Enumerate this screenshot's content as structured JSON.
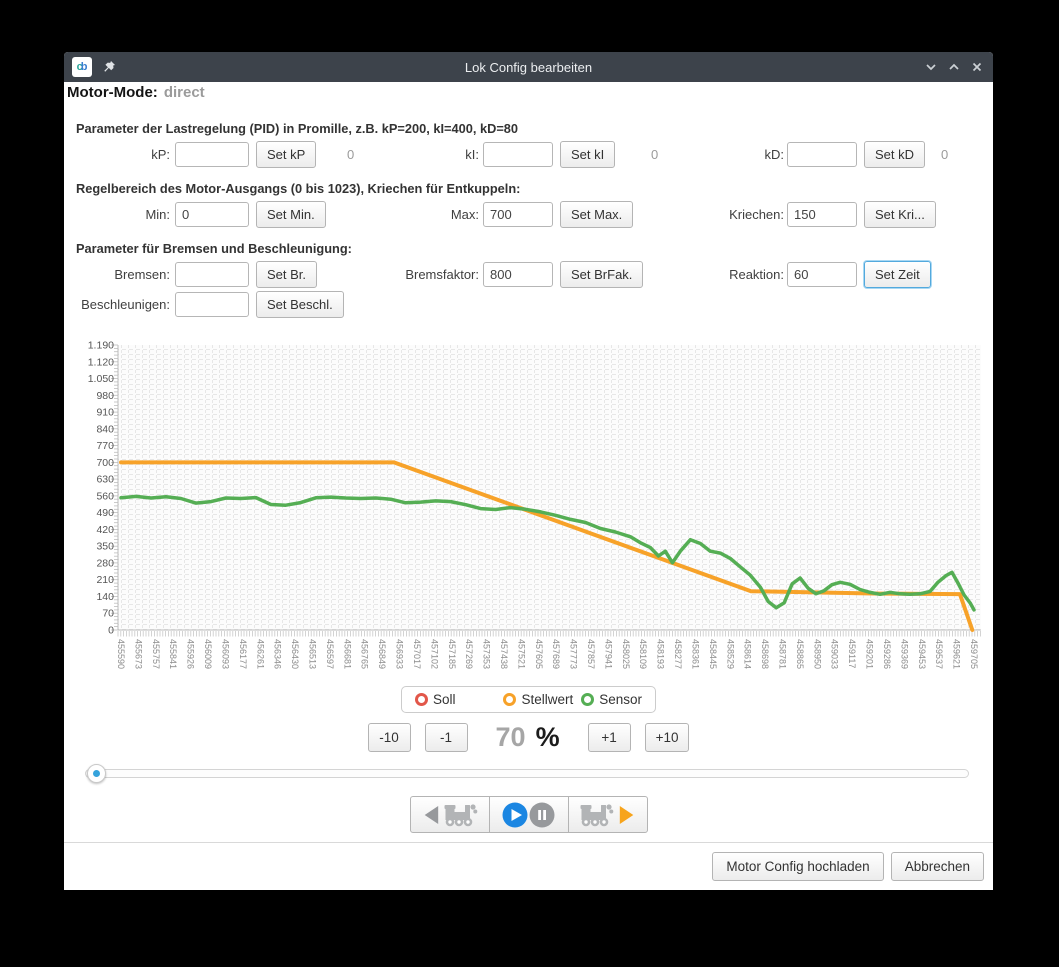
{
  "window": {
    "title": "Lok Config bearbeiten",
    "app_icon_text_1": "c",
    "app_icon_text_2": "b",
    "motor_mode_label": "Motor-Mode:",
    "motor_mode_value": "direct"
  },
  "sections": {
    "pid": {
      "heading": "Parameter der Lastregelung (PID) in Promille, z.B. kP=200, kI=400, kD=80",
      "fields": [
        {
          "label": "kP:",
          "value": "",
          "button": "Set kP",
          "readout": "0"
        },
        {
          "label": "kI:",
          "value": "",
          "button": "Set kI",
          "readout": "0"
        },
        {
          "label": "kD:",
          "value": "",
          "button": "Set kD",
          "readout": "0"
        }
      ]
    },
    "range": {
      "heading": "Regelbereich des Motor-Ausgangs (0 bis 1023), Kriechen für Entkuppeln:",
      "fields": [
        {
          "label": "Min:",
          "value": "0",
          "button": "Set Min."
        },
        {
          "label": "Max:",
          "value": "700",
          "button": "Set Max."
        },
        {
          "label": "Kriechen:",
          "value": "150",
          "button": "Set Kri..."
        }
      ]
    },
    "brake": {
      "heading": "Parameter für Bremsen und Beschleunigung:",
      "fields_row1": [
        {
          "label": "Bremsen:",
          "value": "",
          "button": "Set Br."
        },
        {
          "label": "Bremsfaktor:",
          "value": "800",
          "button": "Set BrFak."
        },
        {
          "label": "Reaktion:",
          "value": "60",
          "button": "Set Zeit",
          "focused": true
        }
      ],
      "fields_row2": [
        {
          "label": "Beschleunigen:",
          "value": "",
          "button": "Set Beschl."
        }
      ]
    }
  },
  "chart_data": {
    "type": "line",
    "title": "",
    "xlabel": "",
    "ylabel": "",
    "xlim": [
      455590,
      459705
    ],
    "ylim": [
      0,
      1190
    ],
    "grid": true,
    "legend_position": "bottom",
    "y_ticks": [
      "0",
      "70",
      "140",
      "210",
      "280",
      "350",
      "420",
      "490",
      "560",
      "630",
      "700",
      "770",
      "840",
      "910",
      "980",
      "1.050",
      "1.120",
      "1.190"
    ],
    "x_ticks": [
      "455590",
      "455673",
      "455757",
      "455841",
      "455926",
      "456009",
      "456093",
      "456177",
      "456261",
      "456346",
      "456430",
      "456513",
      "456597",
      "456681",
      "456765",
      "456849",
      "456933",
      "457017",
      "457102",
      "457185",
      "457269",
      "457353",
      "457438",
      "457521",
      "457605",
      "457689",
      "457773",
      "457857",
      "457941",
      "458025",
      "458109",
      "458193",
      "458277",
      "458361",
      "458445",
      "458529",
      "458614",
      "458698",
      "458781",
      "458865",
      "458950",
      "459033",
      "459117",
      "459201",
      "459286",
      "459369",
      "459453",
      "459537",
      "459621",
      "459705"
    ],
    "series": [
      {
        "name": "Soll",
        "color": "#e2574a",
        "values": []
      },
      {
        "name": "Stellwert",
        "color": "#f7a229",
        "values": [
          [
            455590,
            700
          ],
          [
            456907,
            700
          ],
          [
            458629,
            162
          ],
          [
            459250,
            152
          ],
          [
            459637,
            150
          ],
          [
            459697,
            0
          ]
        ]
      },
      {
        "name": "Sensor",
        "color": "#55ae54",
        "values": [
          [
            455590,
            552
          ],
          [
            455662,
            558
          ],
          [
            455735,
            551
          ],
          [
            455807,
            556
          ],
          [
            455879,
            549
          ],
          [
            455951,
            530
          ],
          [
            456024,
            536
          ],
          [
            456096,
            551
          ],
          [
            456168,
            549
          ],
          [
            456241,
            553
          ],
          [
            456313,
            524
          ],
          [
            456385,
            521
          ],
          [
            456457,
            532
          ],
          [
            456530,
            552
          ],
          [
            456602,
            555
          ],
          [
            456674,
            551
          ],
          [
            456747,
            549
          ],
          [
            456819,
            551
          ],
          [
            456891,
            546
          ],
          [
            456963,
            531
          ],
          [
            457036,
            534
          ],
          [
            457108,
            539
          ],
          [
            457180,
            536
          ],
          [
            457253,
            523
          ],
          [
            457325,
            507
          ],
          [
            457397,
            503
          ],
          [
            457469,
            511
          ],
          [
            457542,
            504
          ],
          [
            457614,
            493
          ],
          [
            457686,
            479
          ],
          [
            457759,
            462
          ],
          [
            457831,
            449
          ],
          [
            457903,
            424
          ],
          [
            457975,
            409
          ],
          [
            458048,
            389
          ],
          [
            458096,
            364
          ],
          [
            458144,
            344
          ],
          [
            458183,
            309
          ],
          [
            458216,
            329
          ],
          [
            458250,
            281
          ],
          [
            458288,
            329
          ],
          [
            458337,
            377
          ],
          [
            458385,
            361
          ],
          [
            458433,
            329
          ],
          [
            458481,
            321
          ],
          [
            458529,
            299
          ],
          [
            458577,
            264
          ],
          [
            458626,
            229
          ],
          [
            458674,
            179
          ],
          [
            458712,
            119
          ],
          [
            458751,
            93
          ],
          [
            458789,
            113
          ],
          [
            458828,
            193
          ],
          [
            458866,
            217
          ],
          [
            458905,
            174
          ],
          [
            458943,
            151
          ],
          [
            458982,
            164
          ],
          [
            459020,
            189
          ],
          [
            459059,
            199
          ],
          [
            459107,
            191
          ],
          [
            459155,
            169
          ],
          [
            459204,
            157
          ],
          [
            459252,
            149
          ],
          [
            459300,
            157
          ],
          [
            459348,
            151
          ],
          [
            459396,
            149
          ],
          [
            459445,
            151
          ],
          [
            459493,
            161
          ],
          [
            459531,
            199
          ],
          [
            459570,
            227
          ],
          [
            459599,
            241
          ],
          [
            459628,
            196
          ],
          [
            459657,
            146
          ],
          [
            459686,
            113
          ],
          [
            459705,
            84
          ]
        ]
      }
    ]
  },
  "speed": {
    "minus10": "-10",
    "minus1": "-1",
    "value": "70",
    "unit": "%",
    "plus1": "+1",
    "plus10": "+10"
  },
  "slider": {
    "position_percent": 0
  },
  "transport": {
    "backward_icons": [
      "triangle-left-icon",
      "locomotive-icon"
    ],
    "play_pause_icons": [
      "play-icon",
      "pause-icon"
    ],
    "forward_icons": [
      "locomotive-icon",
      "triangle-right-icon"
    ],
    "play_color": "#1b86e2",
    "pause_color": "#97999c",
    "forward_triangle_color": "#f7a41c",
    "backward_triangle_color": "#97999c"
  },
  "footer": {
    "upload": "Motor Config hochladen",
    "cancel": "Abbrechen"
  }
}
